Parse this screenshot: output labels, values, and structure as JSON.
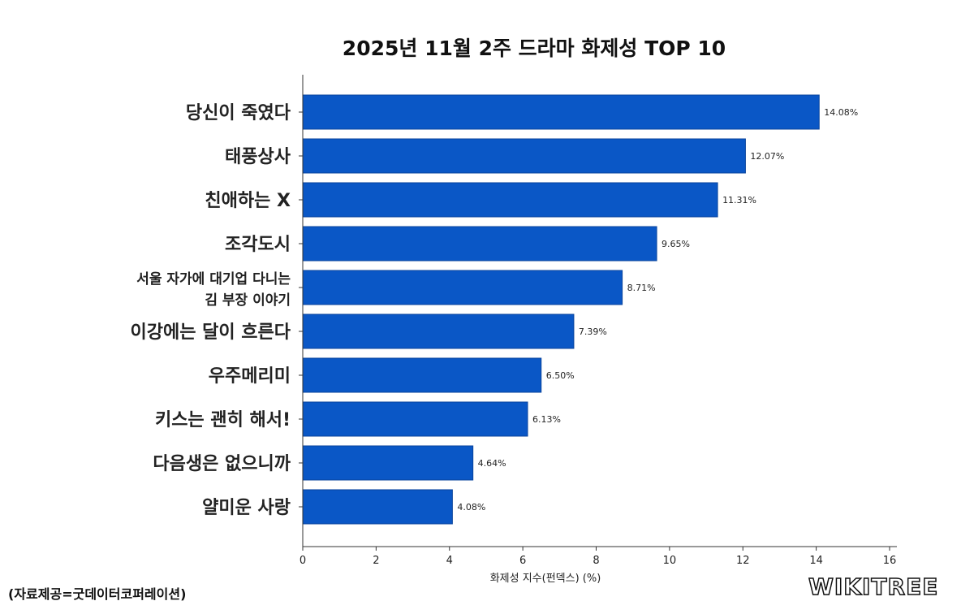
{
  "chart_data": {
    "type": "bar",
    "orientation": "horizontal",
    "title": "2025년 11월 2주 드라마 화제성 TOP 10",
    "xlabel": "화제성 지수(펀덱스) (%)",
    "ylabel": "",
    "xlim": [
      0,
      16
    ],
    "xticks": [
      "0",
      "2",
      "4",
      "6",
      "8",
      "10",
      "12",
      "14",
      "16"
    ],
    "grid": false,
    "bar_color": "#0a57c6",
    "categories": [
      "당신이 죽였다",
      "태풍상사",
      "친애하는 X",
      "조각도시",
      "서울 자가에 대기업 다니는\n김 부장 이야기",
      "이강에는 달이 흐른다",
      "우주메리미",
      "키스는 괜히 해서!",
      "다음생은 없으니까",
      "얄미운 사랑"
    ],
    "values": [
      14.08,
      12.07,
      11.31,
      9.65,
      8.71,
      7.39,
      6.5,
      6.13,
      4.64,
      4.08
    ],
    "data_labels": [
      "14.08%",
      "12.07%",
      "11.31%",
      "9.65%",
      "8.71%",
      "7.39%",
      "6.50%",
      "6.13%",
      "4.64%",
      "4.08%"
    ]
  },
  "source": "(자료제공=굿데이터코퍼레이션)",
  "logo": "WIKITREE"
}
